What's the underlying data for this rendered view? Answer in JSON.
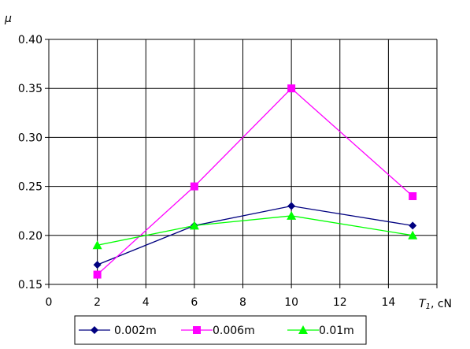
{
  "chart_data": {
    "type": "line",
    "ylabel": "μ",
    "xlabel": {
      "symbol": "T",
      "subscript": "1",
      "unit": ", cN"
    },
    "xlim": [
      0,
      16
    ],
    "ylim": [
      0.15,
      0.4
    ],
    "x_ticks": [
      "0",
      "2",
      "4",
      "6",
      "8",
      "10",
      "12",
      "14"
    ],
    "y_ticks": [
      "0.15",
      "0.20",
      "0.25",
      "0.30",
      "0.35",
      "0.40"
    ],
    "grid": true,
    "legend_position": "bottom",
    "x": [
      2,
      6,
      10,
      15
    ],
    "series": [
      {
        "name": "0.002m",
        "values": [
          0.17,
          0.21,
          0.23,
          0.21
        ],
        "color": "#000080",
        "marker": "diamond"
      },
      {
        "name": "0.006m",
        "values": [
          0.16,
          0.25,
          0.35,
          0.24
        ],
        "color": "#ff00ff",
        "marker": "square"
      },
      {
        "name": "0.01m",
        "values": [
          0.19,
          0.21,
          0.22,
          0.2
        ],
        "color": "#00ff00",
        "marker": "triangle"
      }
    ]
  }
}
